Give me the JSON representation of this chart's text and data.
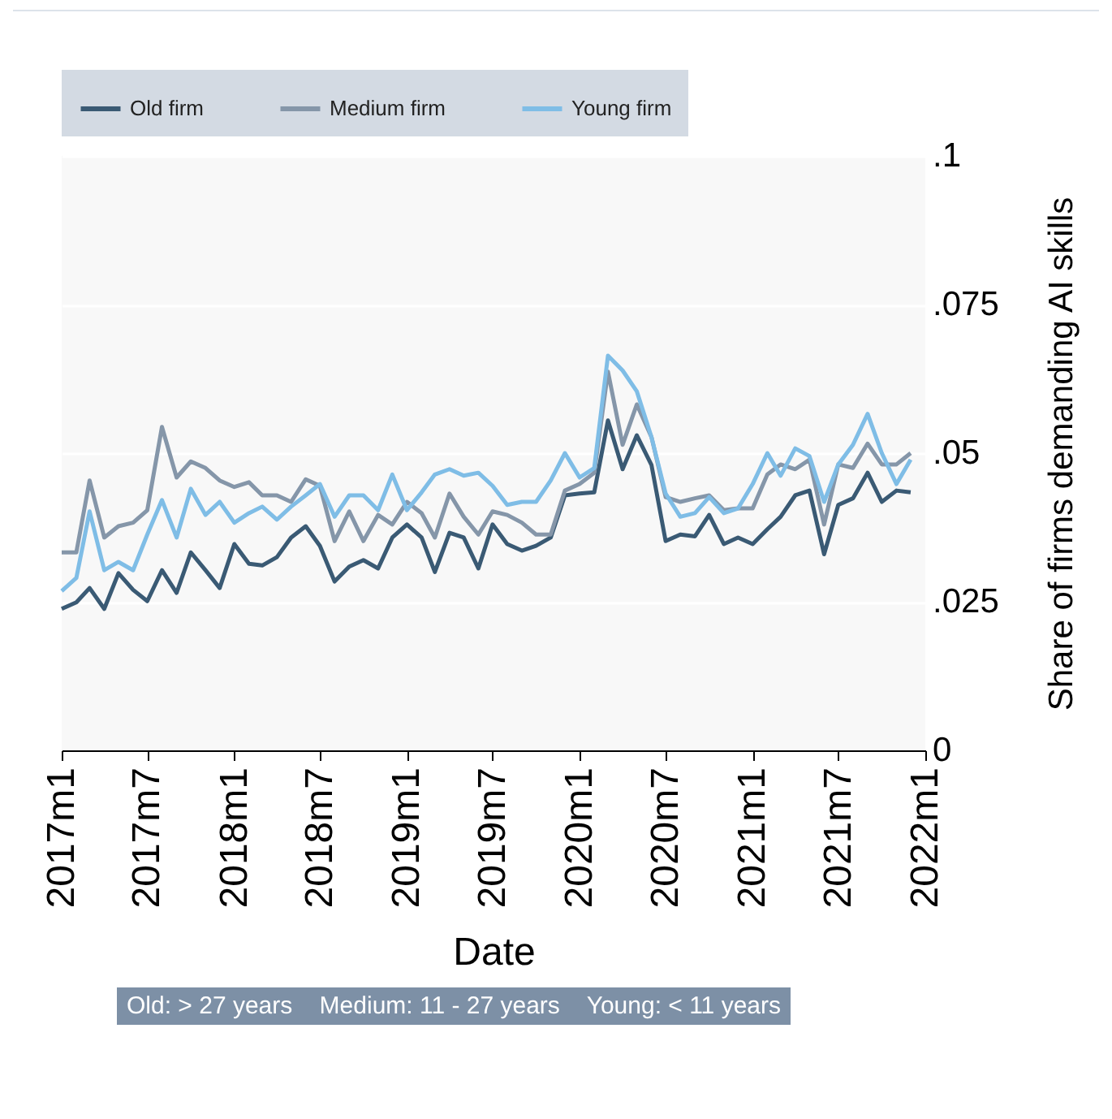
{
  "chart_data": {
    "type": "line",
    "xlabel": "Date",
    "ylabel": "Share of firms demanding AI skills",
    "x": [
      "2017-01",
      "2017-02",
      "2017-03",
      "2017-04",
      "2017-05",
      "2017-06",
      "2017-07",
      "2017-08",
      "2017-09",
      "2017-10",
      "2017-11",
      "2017-12",
      "2018-01",
      "2018-02",
      "2018-03",
      "2018-04",
      "2018-05",
      "2018-06",
      "2018-07",
      "2018-08",
      "2018-09",
      "2018-10",
      "2018-11",
      "2018-12",
      "2019-01",
      "2019-02",
      "2019-03",
      "2019-04",
      "2019-05",
      "2019-06",
      "2019-07",
      "2019-08",
      "2019-09",
      "2019-10",
      "2019-11",
      "2019-12",
      "2020-01",
      "2020-02",
      "2020-03",
      "2020-04",
      "2020-05",
      "2020-06",
      "2020-07",
      "2020-08",
      "2020-09",
      "2020-10",
      "2020-11",
      "2020-12",
      "2021-01",
      "2021-02",
      "2021-03",
      "2021-04",
      "2021-05",
      "2021-06",
      "2021-07",
      "2021-08",
      "2021-09",
      "2021-10",
      "2021-11",
      "2021-12"
    ],
    "series": [
      {
        "name": "Old firm",
        "color": "#3a5a74",
        "values": [
          0.0238,
          0.0249,
          0.0273,
          0.0238,
          0.0298,
          0.027,
          0.0251,
          0.0303,
          0.0265,
          0.0333,
          0.0303,
          0.0273,
          0.0347,
          0.0314,
          0.0311,
          0.0325,
          0.0358,
          0.0377,
          0.0344,
          0.0284,
          0.0309,
          0.032,
          0.0306,
          0.0358,
          0.038,
          0.0358,
          0.03,
          0.0366,
          0.0358,
          0.0306,
          0.038,
          0.0347,
          0.0336,
          0.0344,
          0.0358,
          0.0429,
          0.0432,
          0.0434,
          0.0555,
          0.0473,
          0.053,
          0.048,
          0.0352,
          0.0363,
          0.036,
          0.0396,
          0.0347,
          0.0358,
          0.0347,
          0.0372,
          0.0393,
          0.0429,
          0.0437,
          0.033,
          0.0413,
          0.0424,
          0.0467,
          0.0418,
          0.0437,
          0.0434
        ]
      },
      {
        "name": "Medium firm",
        "color": "#8596a9",
        "values": [
          0.0333,
          0.0333,
          0.0454,
          0.0358,
          0.0377,
          0.0383,
          0.0404,
          0.0544,
          0.0459,
          0.0486,
          0.0475,
          0.0454,
          0.0443,
          0.0451,
          0.0429,
          0.0429,
          0.0418,
          0.0456,
          0.0445,
          0.0352,
          0.0402,
          0.0352,
          0.0396,
          0.038,
          0.0418,
          0.0399,
          0.0358,
          0.0432,
          0.0393,
          0.0363,
          0.0402,
          0.0396,
          0.0383,
          0.0363,
          0.0363,
          0.0437,
          0.0448,
          0.0467,
          0.0637,
          0.0514,
          0.0582,
          0.0527,
          0.0426,
          0.0418,
          0.0424,
          0.0429,
          0.0404,
          0.0407,
          0.0407,
          0.0464,
          0.0481,
          0.0473,
          0.0489,
          0.038,
          0.0481,
          0.0475,
          0.0516,
          0.0481,
          0.0481,
          0.05
        ]
      },
      {
        "name": "Young firm",
        "color": "#7fbde6",
        "values": [
          0.0268,
          0.029,
          0.0402,
          0.0303,
          0.0317,
          0.0303,
          0.0363,
          0.0421,
          0.0358,
          0.044,
          0.0396,
          0.0418,
          0.0383,
          0.0399,
          0.041,
          0.0388,
          0.041,
          0.0429,
          0.0448,
          0.0393,
          0.0429,
          0.0429,
          0.0404,
          0.0464,
          0.0404,
          0.0434,
          0.0464,
          0.0473,
          0.0462,
          0.0467,
          0.0445,
          0.0413,
          0.0418,
          0.0418,
          0.0454,
          0.05,
          0.0459,
          0.0475,
          0.0664,
          0.0639,
          0.0604,
          0.0527,
          0.0432,
          0.0393,
          0.0399,
          0.0426,
          0.0399,
          0.0407,
          0.0448,
          0.05,
          0.0462,
          0.0508,
          0.0495,
          0.0418,
          0.0481,
          0.0514,
          0.0566,
          0.05,
          0.0448,
          0.0489
        ]
      }
    ],
    "xlim": [
      "2017-01",
      "2022-01"
    ],
    "xticks": [
      {
        "value": "2017-01",
        "label": "2017m1"
      },
      {
        "value": "2017-07",
        "label": "2017m7"
      },
      {
        "value": "2018-01",
        "label": "2018m1"
      },
      {
        "value": "2018-07",
        "label": "2018m7"
      },
      {
        "value": "2019-01",
        "label": "2019m1"
      },
      {
        "value": "2019-07",
        "label": "2019m7"
      },
      {
        "value": "2020-01",
        "label": "2020m1"
      },
      {
        "value": "2020-07",
        "label": "2020m7"
      },
      {
        "value": "2021-01",
        "label": "2021m1"
      },
      {
        "value": "2021-07",
        "label": "2021m7"
      },
      {
        "value": "2022-01",
        "label": "2022m1"
      }
    ],
    "ylim": [
      0,
      0.1
    ],
    "yticks": [
      {
        "value": 0,
        "label": "0"
      },
      {
        "value": 0.025,
        "label": ".025"
      },
      {
        "value": 0.05,
        "label": ".05"
      },
      {
        "value": 0.075,
        "label": ".075"
      },
      {
        "value": 0.1,
        "label": ".1"
      }
    ],
    "grid": "y",
    "legend": "top",
    "marker": "none",
    "line_style": "solid",
    "annotations": [
      "Old: > 27 years    Medium: 11 - 27 years    Young: < 11 years"
    ]
  }
}
